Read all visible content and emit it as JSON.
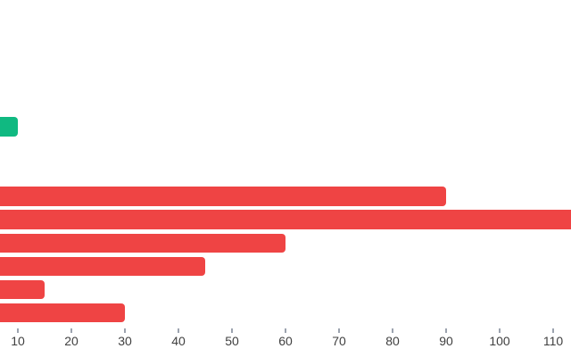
{
  "chart_data": {
    "type": "bar",
    "orientation": "horizontal",
    "title": "",
    "xlabel": "",
    "ylabel": "",
    "grid": false,
    "legend": false,
    "categories_visible": false,
    "note": "Screenshot is cropped: bar bases and category labels are cut off at the left edge (left edge ≈ value 6.7); one red bar runs past the right edge (value > 113, estimated 115); two rows between the green bar and the red bars are empty.",
    "x_ticks": [
      10,
      20,
      30,
      40,
      50,
      60,
      70,
      80,
      90,
      100,
      110
    ],
    "xlim_visible": [
      6.7,
      113.3
    ],
    "rows": [
      {
        "value": 10,
        "color_key": "green",
        "clipped_right": false
      },
      {
        "value": null,
        "color_key": null,
        "clipped_right": false
      },
      {
        "value": null,
        "color_key": null,
        "clipped_right": false
      },
      {
        "value": 90,
        "color_key": "red",
        "clipped_right": false
      },
      {
        "value": 115,
        "color_key": "red",
        "clipped_right": true
      },
      {
        "value": 60,
        "color_key": "red",
        "clipped_right": false
      },
      {
        "value": 45,
        "color_key": "red",
        "clipped_right": false
      },
      {
        "value": 15,
        "color_key": "red",
        "clipped_right": false
      },
      {
        "value": 30,
        "color_key": "red",
        "clipped_right": false
      }
    ],
    "colors": {
      "green": "#10b981",
      "red": "#ef4444",
      "tick": "#9ca3af",
      "tick_label": "#404040",
      "background": "#ffffff"
    }
  }
}
